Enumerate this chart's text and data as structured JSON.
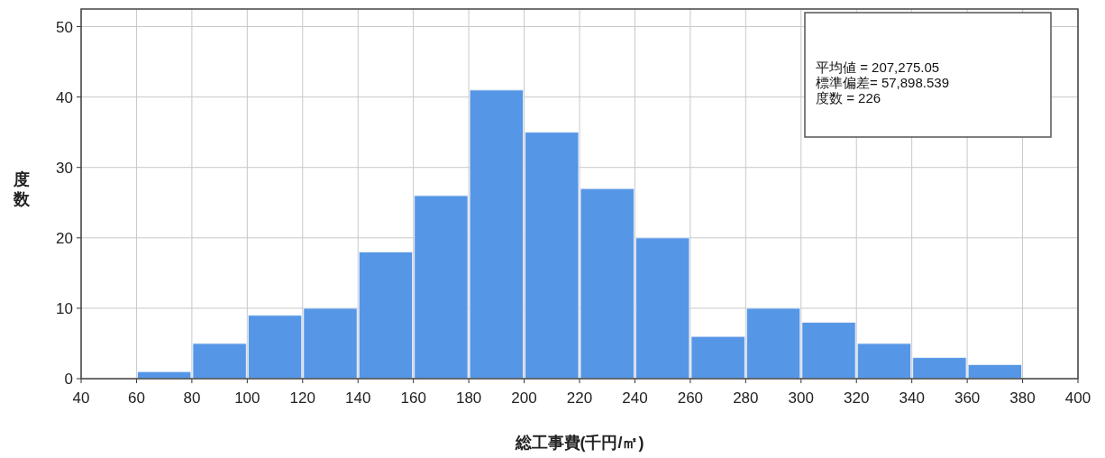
{
  "chart_data": {
    "type": "histogram",
    "xlabel": "総工事費(千円/㎡)",
    "ylabel": "度数",
    "bins": [
      60,
      80,
      100,
      120,
      140,
      160,
      180,
      200,
      220,
      240,
      260,
      280,
      300,
      320,
      340,
      360,
      380
    ],
    "values": [
      1,
      5,
      9,
      10,
      18,
      26,
      41,
      35,
      27,
      20,
      6,
      10,
      8,
      5,
      3,
      2
    ],
    "color": "#5596e6",
    "xlim": [
      40,
      400
    ],
    "xticks": [
      40,
      60,
      80,
      100,
      120,
      140,
      160,
      180,
      200,
      220,
      240,
      260,
      280,
      300,
      320,
      340,
      360,
      380,
      400
    ],
    "ylim": [
      0,
      52.5
    ],
    "yticks": [
      0,
      10,
      20,
      30,
      40,
      50
    ],
    "grid": true,
    "annotations": [
      "平均値 = 207,275.05",
      "標準偏差= 57,898.539",
      "度数 = 226"
    ]
  }
}
